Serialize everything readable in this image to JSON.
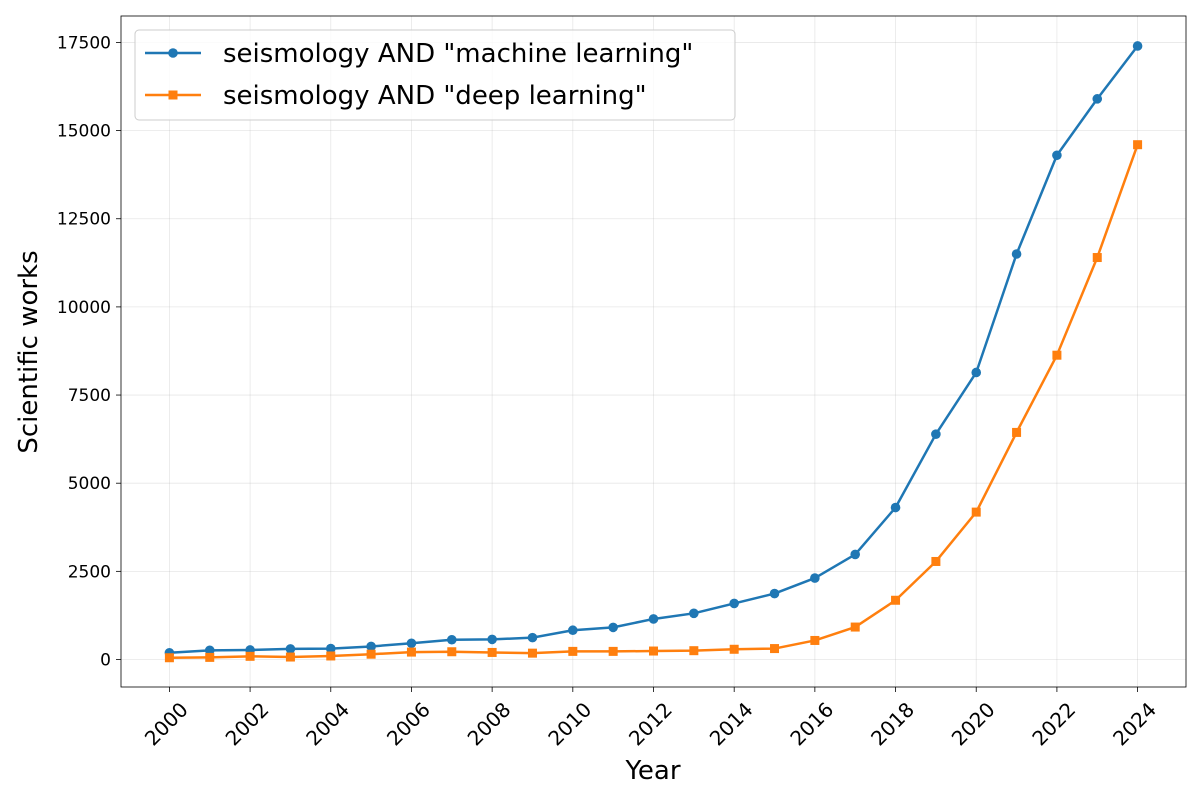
{
  "chart_data": {
    "type": "line",
    "title": "",
    "xlabel": "Year",
    "ylabel": "Scientific works",
    "x": [
      2000,
      2001,
      2002,
      2003,
      2004,
      2005,
      2006,
      2007,
      2008,
      2009,
      2010,
      2011,
      2012,
      2013,
      2014,
      2015,
      2016,
      2017,
      2018,
      2019,
      2020,
      2021,
      2022,
      2023,
      2024
    ],
    "x_ticks": [
      2000,
      2002,
      2004,
      2006,
      2008,
      2010,
      2012,
      2014,
      2016,
      2018,
      2020,
      2022,
      2024
    ],
    "y_ticks": [
      0,
      2500,
      5000,
      7500,
      10000,
      12500,
      15000,
      17500
    ],
    "xlim": [
      1998.8,
      2025.2
    ],
    "ylim": [
      -780,
      18250
    ],
    "grid": true,
    "legend_position": "top-left",
    "series": [
      {
        "name": "seismology AND \"machine learning\"",
        "color": "#1f77b4",
        "marker": "circle",
        "values": [
          190,
          260,
          270,
          300,
          310,
          370,
          460,
          560,
          570,
          620,
          830,
          910,
          1150,
          1310,
          1590,
          1870,
          2310,
          2980,
          4310,
          6390,
          8140,
          11500,
          14300,
          15900,
          17400
        ]
      },
      {
        "name": "seismology AND \"deep learning\"",
        "color": "#ff7f0e",
        "marker": "square",
        "values": [
          50,
          60,
          90,
          70,
          100,
          150,
          210,
          220,
          200,
          180,
          230,
          230,
          240,
          250,
          290,
          310,
          540,
          920,
          1680,
          2780,
          4180,
          6440,
          8630,
          11400,
          14600
        ]
      }
    ]
  }
}
